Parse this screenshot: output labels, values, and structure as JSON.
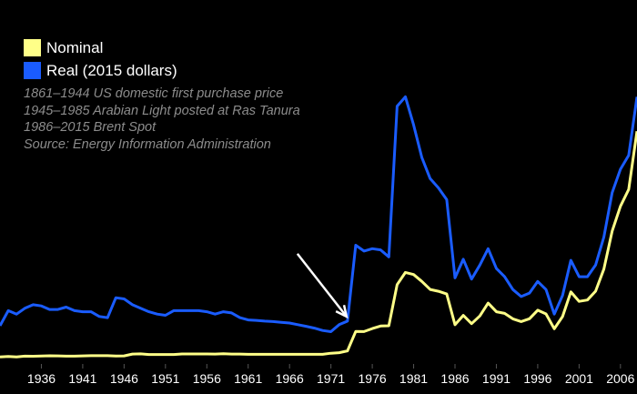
{
  "colors": {
    "background": "#000000",
    "nominal": "#ffff88",
    "real": "#1a5cff",
    "annotation_arrow": "#ffffff",
    "note_text": "#8c8c8c",
    "axis_text": "#ffffff"
  },
  "legend": {
    "items": [
      {
        "label": "Nominal",
        "color": "#ffff88"
      },
      {
        "label": "Real (2015 dollars)",
        "color": "#1a5cff"
      }
    ]
  },
  "notes": [
    "1861–1944 US domestic first purchase price",
    "1945–1985 Arabian Light posted at Ras Tanura",
    "1986–2015 Brent Spot",
    "Source: Energy Information Administration"
  ],
  "chart_data": {
    "type": "line",
    "title": "",
    "xlabel": "",
    "ylabel": "",
    "x_tick_labels": [
      "1936",
      "1941",
      "1946",
      "1951",
      "1956",
      "1961",
      "1966",
      "1971",
      "1976",
      "1981",
      "1986",
      "1991",
      "1996",
      "2001",
      "2006"
    ],
    "xlim": [
      1931,
      2008
    ],
    "ylim": [
      0,
      125
    ],
    "grid": false,
    "legend_position": "top-left",
    "annotation": {
      "type": "arrow",
      "points_to_year": 1973
    },
    "x": [
      1931,
      1932,
      1933,
      1934,
      1935,
      1936,
      1937,
      1938,
      1939,
      1940,
      1941,
      1942,
      1943,
      1944,
      1945,
      1946,
      1947,
      1948,
      1949,
      1950,
      1951,
      1952,
      1953,
      1954,
      1955,
      1956,
      1957,
      1958,
      1959,
      1960,
      1961,
      1962,
      1963,
      1964,
      1965,
      1966,
      1967,
      1968,
      1969,
      1970,
      1971,
      1972,
      1973,
      1974,
      1975,
      1976,
      1977,
      1978,
      1979,
      1980,
      1981,
      1982,
      1983,
      1984,
      1985,
      1986,
      1987,
      1988,
      1989,
      1990,
      1991,
      1992,
      1993,
      1994,
      1995,
      1996,
      1997,
      1998,
      1999,
      2000,
      2001,
      2002,
      2003,
      2004,
      2005,
      2006,
      2007,
      2008
    ],
    "series": [
      {
        "name": "Nominal",
        "values": [
          0.65,
          0.87,
          0.67,
          1.0,
          0.97,
          1.09,
          1.18,
          1.13,
          1.02,
          1.02,
          1.14,
          1.19,
          1.2,
          1.21,
          1.05,
          1.12,
          1.9,
          1.99,
          1.71,
          1.71,
          1.71,
          1.71,
          1.93,
          1.93,
          1.93,
          1.93,
          1.9,
          2.08,
          1.9,
          1.9,
          1.8,
          1.8,
          1.8,
          1.8,
          1.8,
          1.8,
          1.8,
          1.8,
          1.8,
          1.8,
          2.24,
          2.48,
          3.29,
          11.58,
          11.53,
          12.8,
          13.92,
          14.02,
          31.61,
          36.83,
          35.93,
          32.97,
          29.55,
          28.78,
          27.61,
          14.43,
          18.44,
          14.92,
          18.23,
          23.73,
          20.0,
          19.32,
          16.97,
          15.82,
          17.02,
          20.67,
          19.09,
          12.72,
          17.97,
          28.5,
          24.44,
          25.02,
          28.83,
          38.27,
          54.52,
          65.14,
          72.39,
          97.26
        ]
      },
      {
        "name": "Real (2015 dollars)",
        "values": [
          14.0,
          20.5,
          19.0,
          21.5,
          23.0,
          22.5,
          21.0,
          21.0,
          22.0,
          20.5,
          20.0,
          20.0,
          18.0,
          17.5,
          26.0,
          25.5,
          23.0,
          21.5,
          20.0,
          19.0,
          18.5,
          20.5,
          20.5,
          20.5,
          20.5,
          20.0,
          19.0,
          20.0,
          19.5,
          17.5,
          16.5,
          16.3,
          16.0,
          15.8,
          15.5,
          15.2,
          14.5,
          13.8,
          13.0,
          12.0,
          11.5,
          14.5,
          16.0,
          48.5,
          46.0,
          47.0,
          46.5,
          43.5,
          108.0,
          112.0,
          100.0,
          86.0,
          77.0,
          73.0,
          68.0,
          34.5,
          42.5,
          34.0,
          40.0,
          47.0,
          38.5,
          35.0,
          29.5,
          26.5,
          28.0,
          33.0,
          29.5,
          19.0,
          27.0,
          42.0,
          35.0,
          35.0,
          40.0,
          52.0,
          71.0,
          81.0,
          87.0,
          112.0
        ]
      }
    ]
  }
}
